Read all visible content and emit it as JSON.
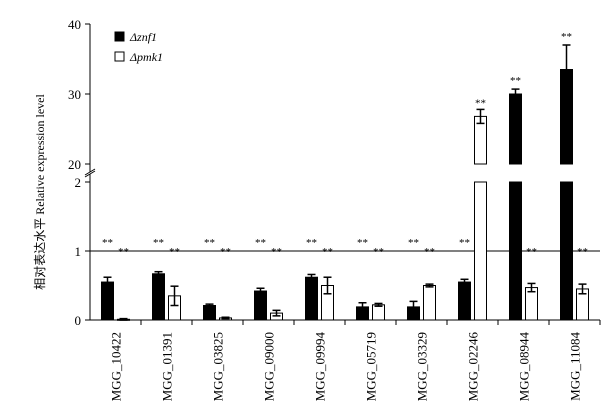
{
  "chart_data": {
    "type": "bar",
    "ylabel": "相对表达水平 Relative expression level",
    "broken_axis": true,
    "y_lower_range": [
      0,
      2
    ],
    "y_upper_range": [
      20,
      40
    ],
    "y_ticks": [
      "0",
      "1",
      "2",
      "20",
      "30",
      "40"
    ],
    "grid": false,
    "legend_position": "top-left",
    "reference_line": 1,
    "categories": [
      "MGG_10422",
      "MGG_01391",
      "MGG_03825",
      "MGG_09000",
      "MGG_09994",
      "MGG_05719",
      "MGG_03329",
      "MGG_02246",
      "MGG_08944",
      "MGG_11084"
    ],
    "series": [
      {
        "name": "Δznf1",
        "fill": "#000000",
        "values": [
          0.55,
          0.67,
          0.21,
          0.42,
          0.62,
          0.19,
          0.19,
          0.55,
          30.0,
          33.5
        ],
        "errors": [
          0.07,
          0.03,
          0.02,
          0.04,
          0.04,
          0.06,
          0.08,
          0.04,
          0.7,
          3.5
        ],
        "significance": [
          "**",
          "**",
          "**",
          "**",
          "**",
          "**",
          "**",
          "**",
          "**",
          "**"
        ]
      },
      {
        "name": "Δpmk1",
        "fill": "#ffffff",
        "values": [
          0.01,
          0.35,
          0.03,
          0.1,
          0.5,
          0.22,
          0.5,
          26.8,
          0.47,
          0.45
        ],
        "errors": [
          0.01,
          0.14,
          0.01,
          0.04,
          0.12,
          0.02,
          0.02,
          1.0,
          0.06,
          0.07
        ],
        "significance": [
          "**",
          "**",
          "**",
          "**",
          "**",
          "**",
          "**",
          "**",
          "**",
          "**"
        ]
      }
    ]
  }
}
